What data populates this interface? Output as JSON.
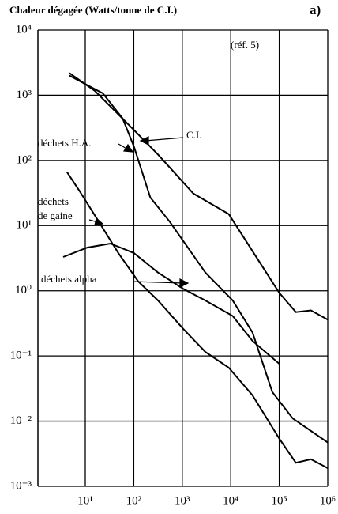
{
  "chart_data": {
    "type": "line",
    "title": "Chaleur dégagée (Watts/tonne de C.I.)",
    "panel_label": "a)",
    "annotation": "(réf. 5)",
    "log_x": true,
    "log_y": true,
    "grid": true,
    "xlim": [
      1,
      1000000
    ],
    "xticks": [
      {
        "value": 10,
        "label": "10¹"
      },
      {
        "value": 100,
        "label": "10²"
      },
      {
        "value": 1000,
        "label": "10³"
      },
      {
        "value": 10000,
        "label": "10⁴"
      },
      {
        "value": 100000,
        "label": "10⁵"
      },
      {
        "value": 1000000,
        "label": "10⁶"
      }
    ],
    "ylim": [
      0.001,
      10000
    ],
    "yticks": [
      {
        "value": 0.001,
        "label": "10⁻³"
      },
      {
        "value": 0.01,
        "label": "10⁻²"
      },
      {
        "value": 0.1,
        "label": "10⁻¹"
      },
      {
        "value": 1,
        "label": "10⁰"
      },
      {
        "value": 10,
        "label": "10¹"
      },
      {
        "value": 100,
        "label": "10²"
      },
      {
        "value": 1000,
        "label": "10³"
      },
      {
        "value": 10000,
        "label": "10⁴"
      }
    ],
    "series": [
      {
        "name": "C.I.",
        "color": "#000000",
        "x": [
          4.7,
          15.7,
          102,
          316,
          1700,
          9100,
          100000,
          220000,
          450000,
          1000000
        ],
        "values": [
          2190,
          1170,
          290,
          123,
          31,
          15,
          0.93,
          0.47,
          0.5,
          0.36
        ]
      },
      {
        "name": "déchets H.A.",
        "color": "#000000",
        "x": [
          4.7,
          23,
          59,
          100,
          219,
          550,
          1050,
          3000,
          11000,
          28000,
          72000,
          190000,
          1000000
        ],
        "values": [
          2000,
          1070,
          440,
          166,
          27,
          11.5,
          5.8,
          1.9,
          0.71,
          0.23,
          0.028,
          0.011,
          0.0047
        ]
      },
      {
        "name": "déchets de gaine",
        "color": "#000000",
        "x": [
          4.2,
          7.4,
          19,
          48,
          123,
          316,
          1050,
          3000,
          9100,
          28000,
          100000,
          220000,
          450000,
          1000000
        ],
        "values": [
          66,
          35,
          11.5,
          3.8,
          1.4,
          0.71,
          0.26,
          0.115,
          0.066,
          0.025,
          0.0054,
          0.0023,
          0.0026,
          0.0019
        ]
      },
      {
        "name": "déchets alpha",
        "color": "#000000",
        "x": [
          3.5,
          11,
          33,
          100,
          316,
          1050,
          3000,
          11000,
          28000,
          100000
        ],
        "values": [
          3.3,
          4.6,
          5.3,
          3.8,
          1.9,
          1.07,
          0.71,
          0.41,
          0.17,
          0.076
        ]
      }
    ]
  }
}
